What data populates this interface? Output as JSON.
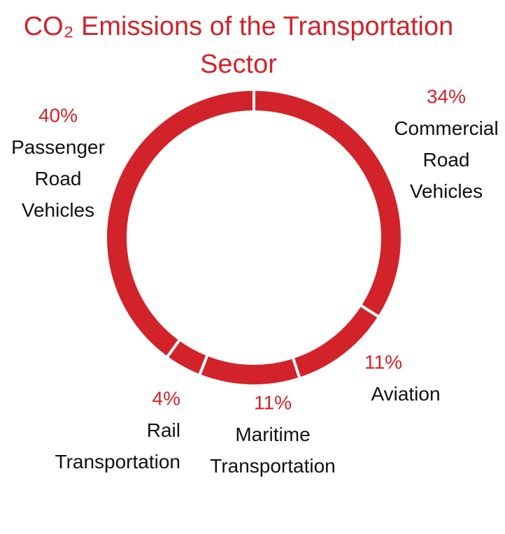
{
  "chart_data": {
    "type": "donut",
    "title": "CO₂ Emissions of the Transportation Sector",
    "categories": [
      "Commercial Road Vehicles",
      "Aviation",
      "Maritime Transportation",
      "Rail Transportation",
      "Passenger Road Vehicles"
    ],
    "values": [
      34,
      11,
      11,
      4,
      40
    ],
    "value_labels": [
      "34%",
      "11%",
      "11%",
      "4%",
      "40%"
    ],
    "color": "#d2232a"
  }
}
